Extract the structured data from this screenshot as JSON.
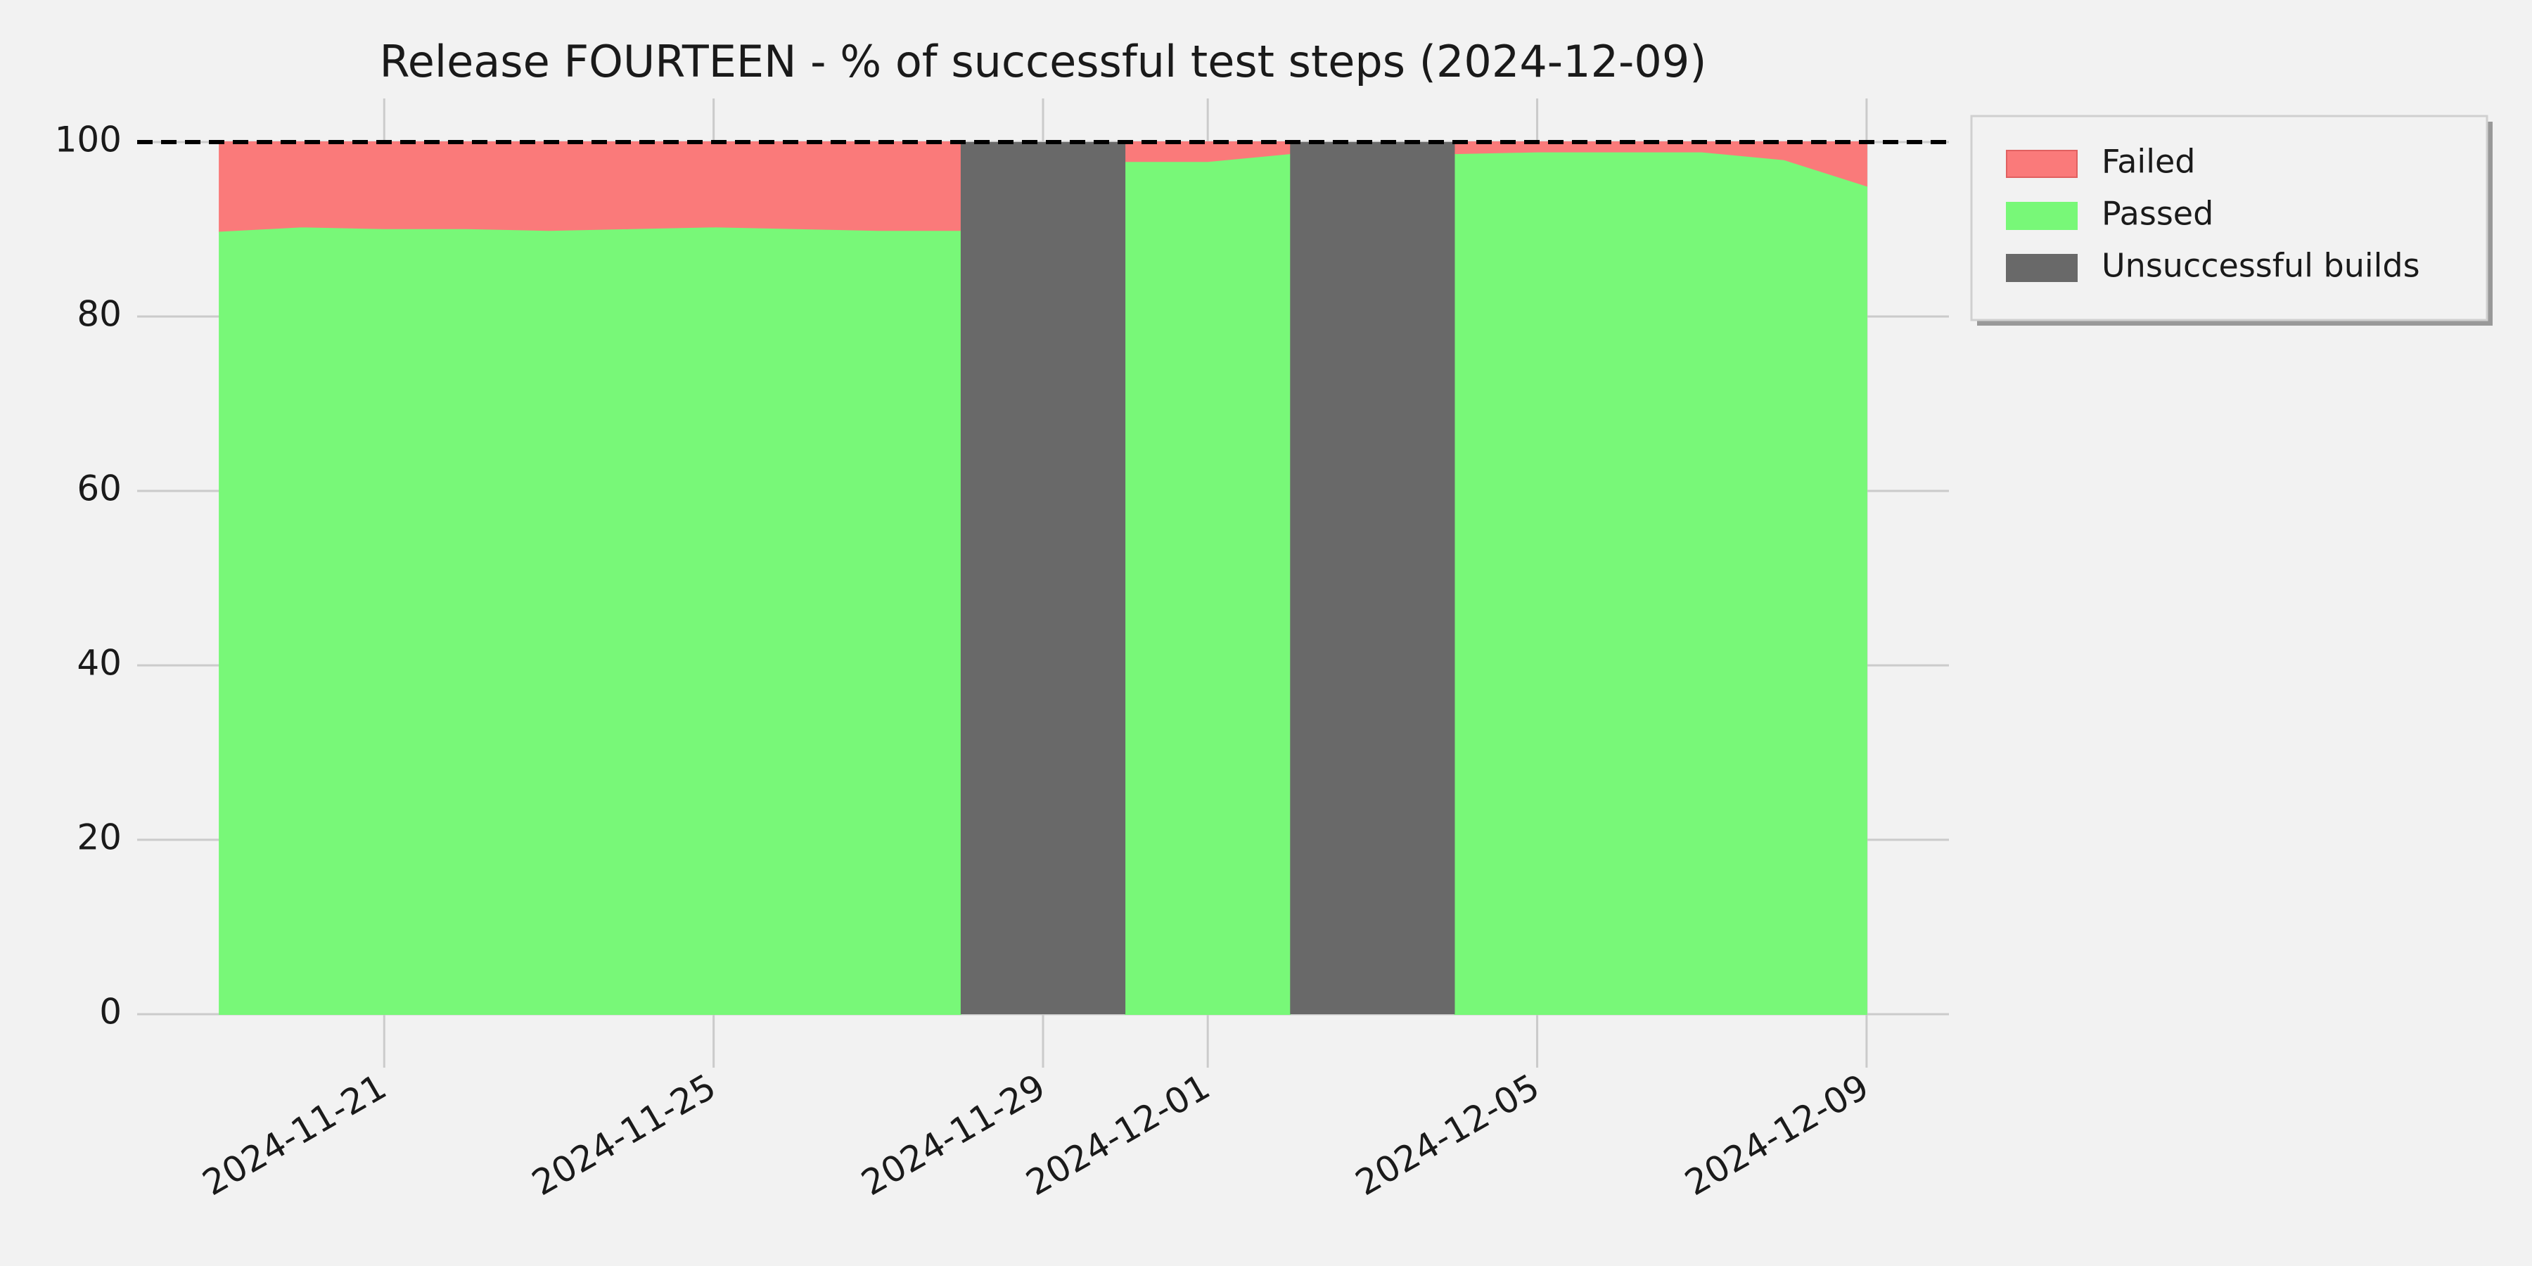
{
  "chart_data": {
    "type": "stacked_area",
    "title": "Release FOURTEEN - % of successful test steps (2024-12-09)",
    "x": [
      "2024-11-19",
      "2024-11-20",
      "2024-11-21",
      "2024-11-22",
      "2024-11-23",
      "2024-11-24",
      "2024-11-25",
      "2024-11-26",
      "2024-11-27",
      "2024-11-28",
      "2024-11-29",
      "2024-11-30",
      "2024-12-01",
      "2024-12-02",
      "2024-12-03",
      "2024-12-04",
      "2024-12-05",
      "2024-12-06",
      "2024-12-07",
      "2024-12-08",
      "2024-12-09"
    ],
    "series": [
      {
        "name": "Passed",
        "color": "#78f878",
        "values": [
          89.8,
          90.3,
          90.1,
          90.1,
          89.9,
          90.1,
          90.3,
          90.1,
          89.9,
          89.9,
          null,
          97.8,
          97.8,
          98.7,
          null,
          98.7,
          98.9,
          98.9,
          98.9,
          98.0,
          95.0
        ]
      },
      {
        "name": "Failed",
        "color": "#fa7a7a",
        "values": [
          10.2,
          9.7,
          9.9,
          9.9,
          10.1,
          9.9,
          9.7,
          9.9,
          10.1,
          10.1,
          null,
          2.2,
          2.2,
          1.3,
          null,
          1.3,
          1.1,
          1.1,
          1.1,
          2.0,
          5.0
        ]
      },
      {
        "name": "Unsuccessful builds",
        "color": "#696969",
        "values": [
          null,
          null,
          null,
          null,
          null,
          null,
          null,
          null,
          null,
          null,
          100,
          null,
          null,
          null,
          100,
          null,
          null,
          null,
          null,
          null,
          null
        ]
      }
    ],
    "legend_order": [
      "Failed",
      "Passed",
      "Unsuccessful builds"
    ],
    "reference_line": 100,
    "xlim": [
      "2024-11-18",
      "2024-12-10"
    ],
    "xticks": [
      "2024-11-21",
      "2024-11-25",
      "2024-11-29",
      "2024-12-01",
      "2024-12-05",
      "2024-12-09"
    ],
    "ylim": [
      -5,
      105
    ],
    "yticks": [
      0,
      20,
      40,
      60,
      80,
      100
    ],
    "grid": true,
    "legend": "outside upper right"
  }
}
